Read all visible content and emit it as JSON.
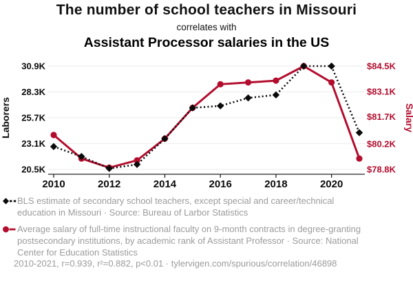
{
  "header": {
    "title_line1": "The number of school teachers in Missouri",
    "title_line2": "correlates with",
    "title_line3": "Assistant Processor salaries in the US"
  },
  "colors": {
    "accent_red": "#b30d2e",
    "series_black": "#0a0a0a",
    "muted_gray": "#9b9b9b",
    "gridline": "#efefef",
    "axis_line": "#222222"
  },
  "chart_data": {
    "type": "line",
    "x": [
      2010,
      2011,
      2012,
      2013,
      2014,
      2015,
      2016,
      2017,
      2018,
      2019,
      2020,
      2021
    ],
    "x_ticks": [
      2010,
      2012,
      2014,
      2016,
      2018,
      2020
    ],
    "grid": true,
    "legend_position": "bottom",
    "series": [
      {
        "name": "BLS estimate of secondary school teachers, except special and career/technical education in Missouri",
        "axis": "left",
        "style": "dashed-diamond",
        "color": "#0a0a0a",
        "unit": "thousand laborers",
        "values": [
          22.8,
          21.8,
          20.6,
          21.0,
          23.6,
          26.7,
          26.9,
          27.7,
          28.0,
          30.9,
          30.9,
          24.2
        ]
      },
      {
        "name": "Average salary of full-time instructional faculty on 9-month contracts, academic rank of Assistant Professor",
        "axis": "right",
        "style": "solid-circle",
        "color": "#b30d2e",
        "unit": "$K",
        "values": [
          80.7,
          79.4,
          78.9,
          79.3,
          80.5,
          82.2,
          83.5,
          83.6,
          83.7,
          84.5,
          83.6,
          79.4
        ]
      }
    ],
    "left_axis": {
      "label": "Laborers",
      "ticks": [
        "30.9K",
        "28.3K",
        "25.7K",
        "23.1K",
        "20.5K"
      ],
      "tick_values": [
        30.9,
        28.3,
        25.7,
        23.1,
        20.5
      ],
      "range": [
        20.5,
        30.9
      ]
    },
    "right_axis": {
      "label": "Salary",
      "ticks": [
        "$84.5K",
        "$83.1K",
        "$81.7K",
        "$80.2K",
        "$78.8K"
      ],
      "tick_values": [
        84.5,
        83.1,
        81.7,
        80.2,
        78.8
      ],
      "range": [
        78.8,
        84.5
      ]
    }
  },
  "legend": {
    "items": [
      {
        "marker": "black-diamond-dashed",
        "label": "BLS estimate of secondary school teachers, except special and career/technical education in Missouri · Source: Bureau of Larbor Statistics"
      },
      {
        "marker": "red-circle-solid",
        "label": "Average salary of full-time instructional faculty on 9-month contracts in degree-granting postsecondary institutions, by academic rank of Assistant Professor · Source: National Center for Education Statistics"
      }
    ]
  },
  "footer": {
    "text": "2010-2021, r=0.939, r²=0.882, p<0.01 · tylervigen.com/spurious/correlation/46898"
  }
}
